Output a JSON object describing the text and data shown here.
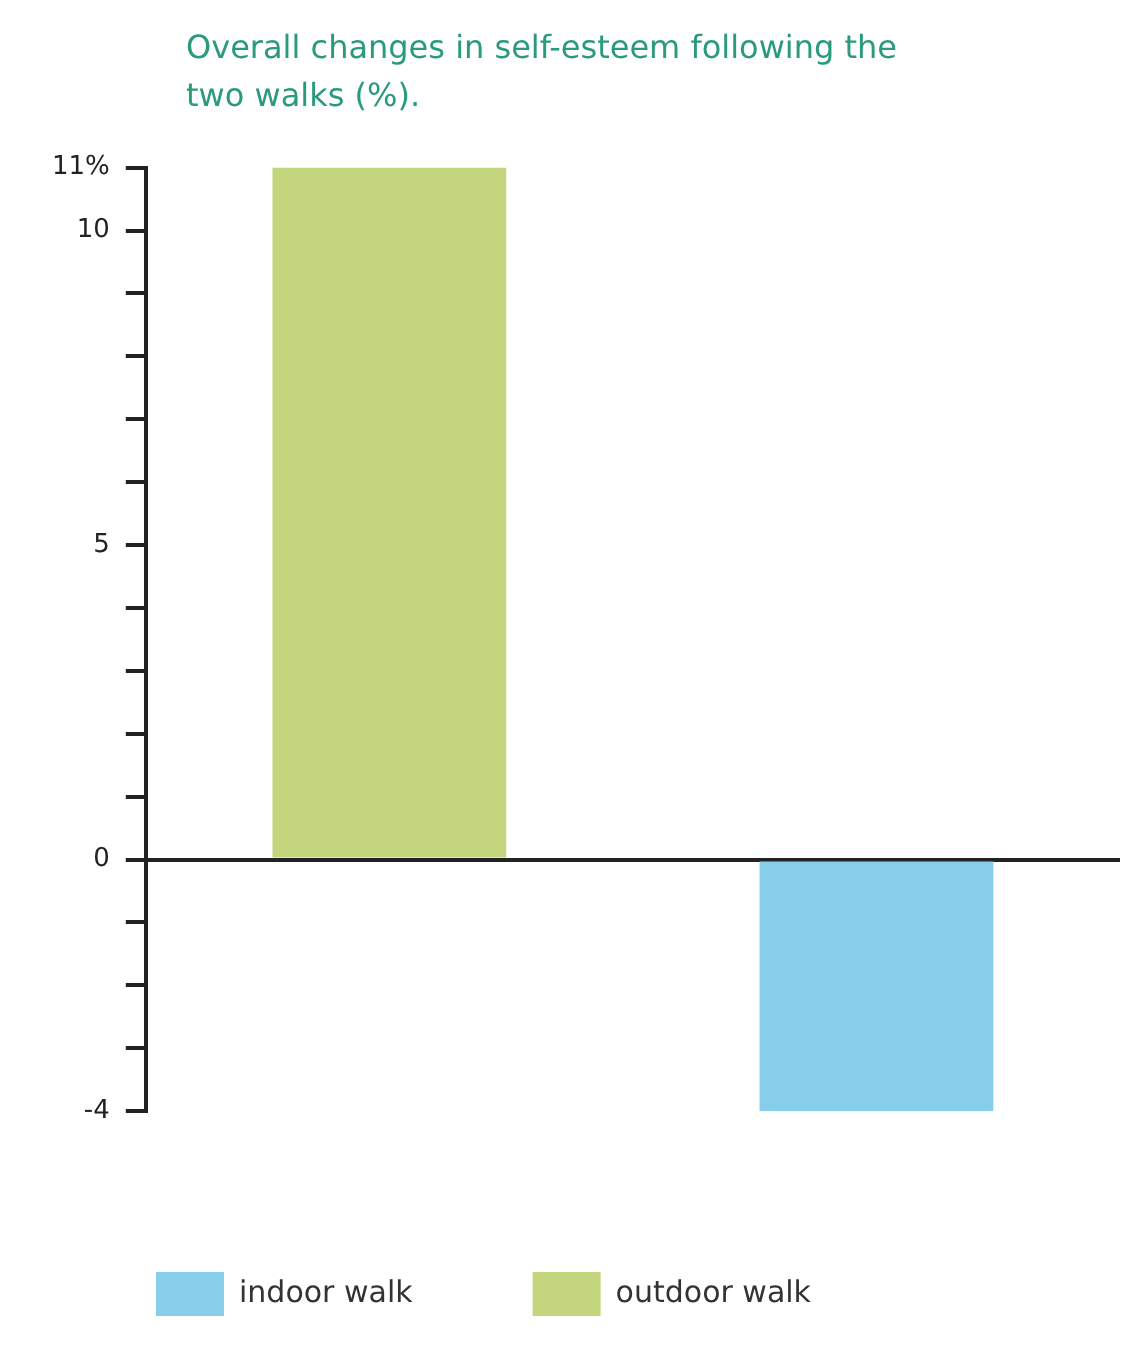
{
  "chart_data": {
    "type": "bar",
    "title": "Overall changes in self-esteem following the two walks (%).",
    "categories": [
      null,
      null
    ],
    "series": [
      {
        "name": "indoor walk",
        "color": "#87ceeb",
        "values": [
          null,
          -4
        ]
      },
      {
        "name": "outdoor walk",
        "color": "#c3d67e",
        "values": [
          11,
          null
        ]
      }
    ],
    "ylim": [
      -4,
      11
    ],
    "yticks": [
      -4,
      {
        "value": -3,
        "label": null
      },
      {
        "value": -2,
        "label": null
      },
      {
        "value": -1,
        "label": null
      },
      0,
      {
        "value": 1,
        "label": null
      },
      {
        "value": 2,
        "label": null
      },
      {
        "value": 3,
        "label": null
      },
      {
        "value": 4,
        "label": null
      },
      5,
      {
        "value": 6,
        "label": null
      },
      {
        "value": 7,
        "label": null
      },
      {
        "value": 8,
        "label": null
      },
      {
        "value": 9,
        "label": null
      },
      10,
      {
        "value": 11,
        "label": "11%"
      }
    ],
    "legend": "bottom"
  }
}
